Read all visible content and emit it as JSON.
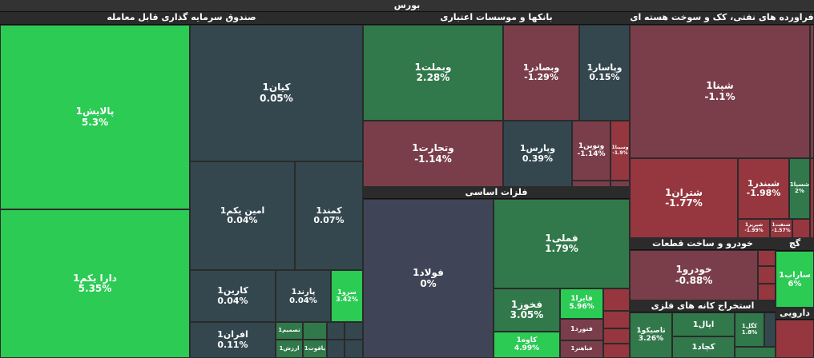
{
  "title": "بورس",
  "chart_data": {
    "type": "treemap",
    "colors": {
      "strong_up": "#2bcb54",
      "up": "#31784a",
      "flat": "#34474f",
      "flat_dark": "#3f4556",
      "down": "#7a3e4a",
      "strong_down": "#96363f"
    },
    "sectors": [
      {
        "name": "صندوق سرمایه گذاری قابل معامله",
        "stocks": [
          {
            "name": "پالایش1",
            "change": "5.3%"
          },
          {
            "name": "دارا یکم1",
            "change": "5.35%"
          },
          {
            "name": "کیان1",
            "change": "0.05%"
          },
          {
            "name": "امین یکم1",
            "change": "0.04%"
          },
          {
            "name": "کمند1",
            "change": "0.07%"
          },
          {
            "name": "کارین1",
            "change": "0.04%"
          },
          {
            "name": "پارند1",
            "change": "0.04%"
          },
          {
            "name": "سرو1",
            "change": "3.42%"
          },
          {
            "name": "افران1",
            "change": "0.11%"
          },
          {
            "name": "تصمیم1",
            "change": ""
          },
          {
            "name": "ارزش1",
            "change": ""
          },
          {
            "name": "یاقوت1",
            "change": ""
          }
        ]
      },
      {
        "name": "بانکها و موسسات اعتباری",
        "stocks": [
          {
            "name": "وبملت1",
            "change": "2.28%"
          },
          {
            "name": "وبصادر1",
            "change": "-1.29%"
          },
          {
            "name": "وپاسار1",
            "change": "0.15%"
          },
          {
            "name": "وتجارت1",
            "change": "-1.14%"
          },
          {
            "name": "وپارس1",
            "change": "0.39%"
          },
          {
            "name": "ونوین1",
            "change": "-1.14%"
          },
          {
            "name": "وسینا1",
            "change": "-1.9%"
          }
        ]
      },
      {
        "name": "فلزات اساسی",
        "stocks": [
          {
            "name": "فولاد1",
            "change": "0%"
          },
          {
            "name": "فملی1",
            "change": "1.79%"
          },
          {
            "name": "فخوز1",
            "change": "3.05%"
          },
          {
            "name": "فایرا1",
            "change": "5.96%"
          },
          {
            "name": "فنورد1",
            "change": ""
          },
          {
            "name": "کاوه1",
            "change": "4.99%"
          },
          {
            "name": "فباهنر1",
            "change": ""
          }
        ]
      },
      {
        "name": "فراورده های نفتی، کک و سوخت هسته ای",
        "stocks": [
          {
            "name": "شپنا1",
            "change": "-1.1%"
          },
          {
            "name": "شتران1",
            "change": "-1.77%"
          },
          {
            "name": "شبندر1",
            "change": "-1.98%"
          },
          {
            "name": "شسپا1",
            "change": "2%"
          },
          {
            "name": "شپریز1",
            "change": "-1.99%"
          },
          {
            "name": "شنفت1",
            "change": "-1.57%"
          }
        ]
      },
      {
        "name": "خودرو و ساخت قطعات",
        "stocks": [
          {
            "name": "خودرو1",
            "change": "-0.88%"
          }
        ]
      },
      {
        "name": "استخراج کانه های فلزی",
        "stocks": [
          {
            "name": "تاصیکو1",
            "change": "3.26%"
          },
          {
            "name": "اپال1",
            "change": ""
          },
          {
            "name": "کگل1",
            "change": "1.8%"
          },
          {
            "name": "کچاد1",
            "change": ""
          }
        ]
      },
      {
        "name": "گچ",
        "stocks": [
          {
            "name": "ساراب1",
            "change": "6%"
          }
        ]
      },
      {
        "name": "دارویی",
        "stocks": []
      }
    ]
  }
}
